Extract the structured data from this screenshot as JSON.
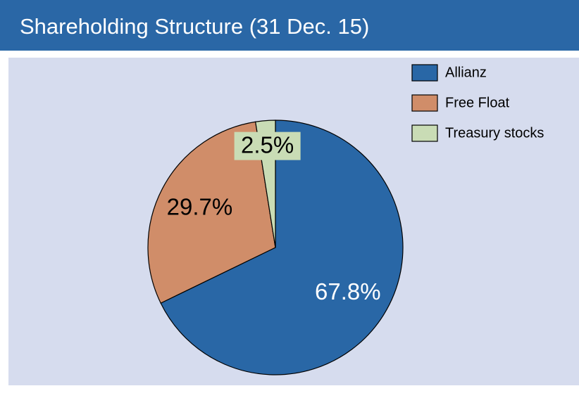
{
  "chart_data": {
    "type": "pie",
    "title": "Shareholding Structure (31 Dec. 15)",
    "categories": [
      "Allianz",
      "Free Float",
      "Treasury stocks"
    ],
    "values": [
      67.8,
      29.7,
      2.5
    ],
    "value_labels": [
      "67.8%",
      "29.7%",
      "2.5%"
    ],
    "colors": [
      "#2967a6",
      "#d08d69",
      "#c9dcb5"
    ],
    "legend": "top-right"
  }
}
